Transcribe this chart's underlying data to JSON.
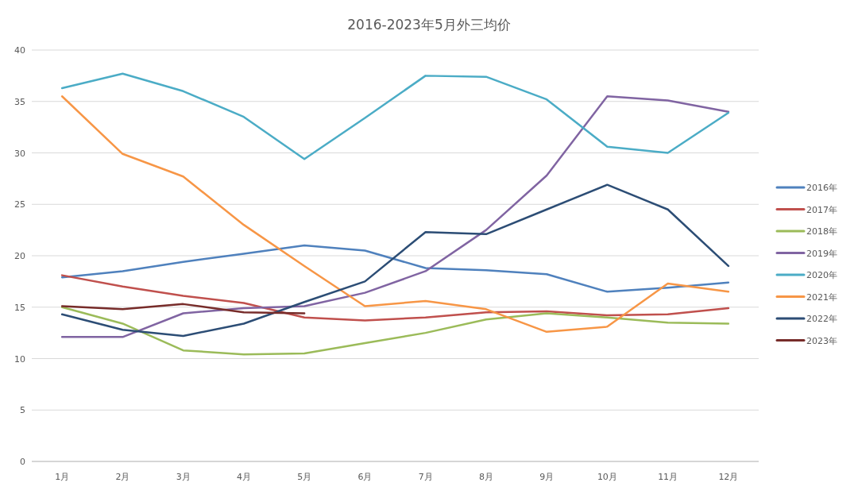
{
  "chart_data": {
    "type": "line",
    "title": "2016-2023年5月外三均价",
    "categories": [
      "1月",
      "2月",
      "3月",
      "4月",
      "5月",
      "6月",
      "7月",
      "8月",
      "9月",
      "10月",
      "11月",
      "12月"
    ],
    "ylim": [
      0,
      40
    ],
    "yticks": [
      0,
      5,
      10,
      15,
      20,
      25,
      30,
      35,
      40
    ],
    "grid": "y",
    "legend": "right",
    "series": [
      {
        "name": "2016年",
        "color": "#4f81bd",
        "values": [
          17.9,
          18.5,
          19.4,
          20.2,
          21.0,
          20.5,
          18.8,
          18.6,
          18.2,
          16.5,
          16.9,
          17.4
        ]
      },
      {
        "name": "2017年",
        "color": "#c0504d",
        "values": [
          18.1,
          17.0,
          16.1,
          15.4,
          14.0,
          13.7,
          14.0,
          14.5,
          14.6,
          14.2,
          14.3,
          14.9
        ]
      },
      {
        "name": "2018年",
        "color": "#9bbb59",
        "values": [
          15.0,
          13.4,
          10.8,
          10.4,
          10.5,
          11.5,
          12.5,
          13.8,
          14.4,
          14.0,
          13.5,
          13.4
        ]
      },
      {
        "name": "2019年",
        "color": "#8064a2",
        "values": [
          12.1,
          12.1,
          14.4,
          14.9,
          15.1,
          16.4,
          18.5,
          22.5,
          27.8,
          35.5,
          35.1,
          34.0
        ]
      },
      {
        "name": "2020年",
        "color": "#4bacc6",
        "values": [
          36.3,
          37.7,
          36.0,
          33.5,
          29.4,
          33.4,
          37.5,
          37.4,
          35.2,
          30.6,
          30.0,
          33.9
        ]
      },
      {
        "name": "2021年",
        "color": "#f79646",
        "values": [
          35.5,
          29.9,
          27.7,
          23.0,
          19.0,
          15.1,
          15.6,
          14.8,
          12.6,
          13.1,
          17.3,
          16.5
        ]
      },
      {
        "name": "2022年",
        "color": "#2c4d75",
        "values": [
          14.3,
          12.8,
          12.2,
          13.4,
          15.5,
          17.5,
          22.3,
          22.1,
          24.5,
          26.9,
          24.5,
          19.0
        ]
      },
      {
        "name": "2023年",
        "color": "#772c2a",
        "values": [
          15.1,
          14.8,
          15.3,
          14.5,
          14.4,
          null,
          null,
          null,
          null,
          null,
          null,
          null
        ]
      }
    ]
  }
}
